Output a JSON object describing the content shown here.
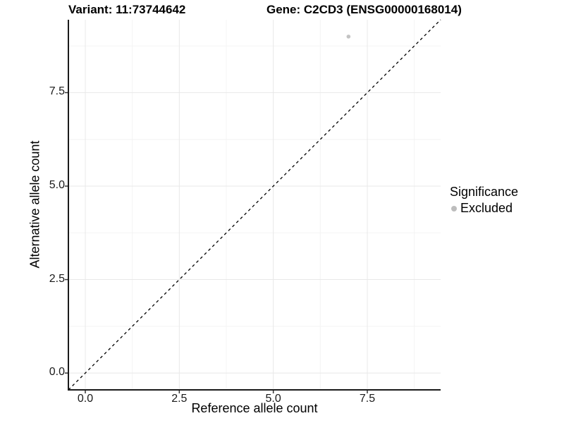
{
  "titles": {
    "variant": "Variant: 11:73744642",
    "gene": "Gene: C2CD3 (ENSG00000168014)"
  },
  "axes": {
    "x_title": "Reference allele count",
    "y_title": "Alternative allele count",
    "x_tick_labels": [
      "0.0",
      "2.5",
      "5.0",
      "7.5"
    ],
    "y_tick_labels": [
      "0.0",
      "2.5",
      "5.0",
      "7.5"
    ]
  },
  "legend": {
    "title": "Significance",
    "items": [
      {
        "label": "Excluded",
        "color": "#bdbdbd"
      }
    ]
  },
  "colors": {
    "grid_major": "#e8e8e8",
    "grid_minor": "#f4f4f4",
    "axis_line": "#1a1a1a",
    "tick_mark": "#333333",
    "point": "#c3c3c3",
    "reference_line": "#000000",
    "background": "#ffffff"
  },
  "chart_data": {
    "type": "scatter",
    "title": "Variant: 11:73744642    Gene: C2CD3 (ENSG00000168014)",
    "xlabel": "Reference allele count",
    "ylabel": "Alternative allele count",
    "xlim": [
      -0.45,
      9.45
    ],
    "ylim": [
      -0.45,
      9.45
    ],
    "x_ticks": [
      0,
      2.5,
      5,
      7.5
    ],
    "y_ticks": [
      0,
      2.5,
      5,
      7.5
    ],
    "x_minor_ticks": [
      1.25,
      3.75,
      6.25,
      8.75
    ],
    "y_minor_ticks": [
      1.25,
      3.75,
      6.25,
      8.75
    ],
    "grid": true,
    "legend_position": "right",
    "series": [
      {
        "name": "Excluded",
        "color": "#c3c3c3",
        "points": [
          {
            "x": 7,
            "y": 9
          }
        ]
      }
    ],
    "reference_line": {
      "type": "identity",
      "slope": 1,
      "intercept": 0,
      "style": "dashed",
      "color": "#000000"
    }
  }
}
